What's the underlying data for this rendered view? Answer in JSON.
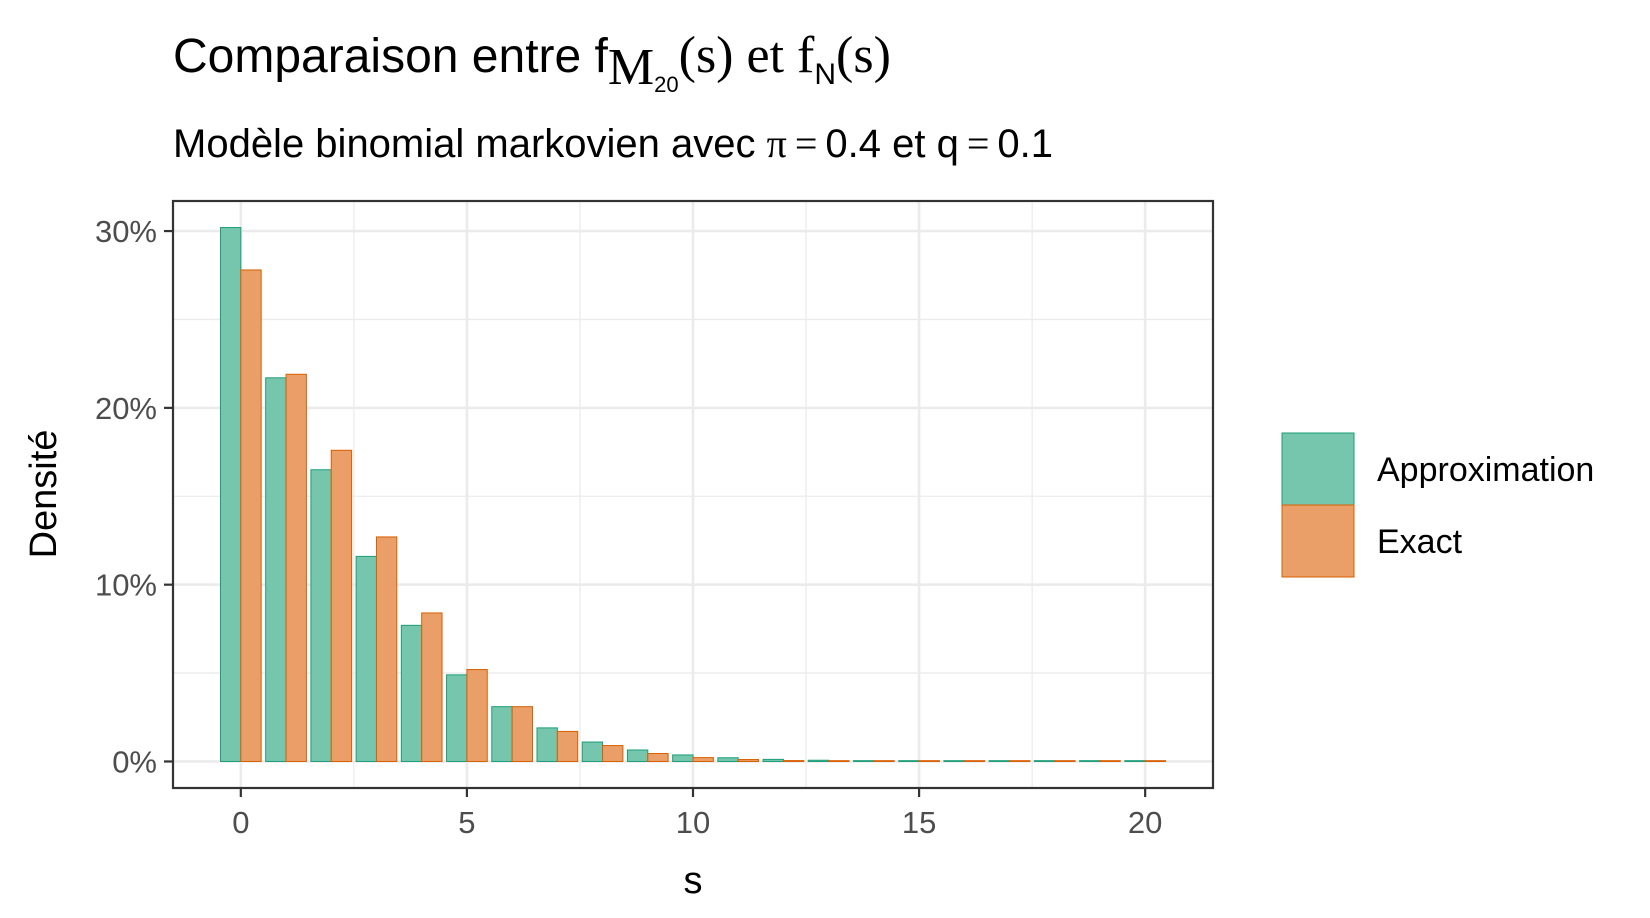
{
  "chart_data": {
    "type": "bar",
    "title": {
      "prefix": "Comparaison entre f",
      "sub1": "M",
      "sub1b": "20",
      "mid": "(s) et f",
      "sub2": "N",
      "suffix": "(s)"
    },
    "subtitle": {
      "text1": "Modèle binomial markovien avec ",
      "pi": "π",
      "eq": "=",
      "text2": "0.4 et q",
      "text3": "0.1"
    },
    "xlabel": "s",
    "ylabel": "Densité",
    "xlim": [
      -1.5,
      21.5
    ],
    "ylim": [
      -0.015,
      0.317
    ],
    "x_ticks": [
      0,
      5,
      10,
      15,
      20
    ],
    "y_ticks": [
      0,
      0.1,
      0.2,
      0.3
    ],
    "y_tick_labels": [
      "0%",
      "10%",
      "20%",
      "30%"
    ],
    "grid": true,
    "legend_position": "right",
    "x": [
      0,
      1,
      2,
      3,
      4,
      5,
      6,
      7,
      8,
      9,
      10,
      11,
      12,
      13,
      14,
      15,
      16,
      17,
      18,
      19,
      20
    ],
    "series": [
      {
        "name": "Approximation",
        "color": "#76c6ae",
        "stroke": "#1b9e77",
        "values": [
          0.302,
          0.217,
          0.165,
          0.116,
          0.077,
          0.049,
          0.031,
          0.019,
          0.011,
          0.0065,
          0.0037,
          0.0021,
          0.0012,
          0.0007,
          0.0004,
          0.0002,
          0.0001,
          6e-05,
          3e-05,
          2e-05,
          1e-05
        ]
      },
      {
        "name": "Exact",
        "color": "#e99f67",
        "stroke": "#d95f02",
        "values": [
          0.278,
          0.219,
          0.176,
          0.127,
          0.084,
          0.052,
          0.031,
          0.017,
          0.009,
          0.0045,
          0.0022,
          0.0011,
          0.0005,
          0.0002,
          0.0001,
          4e-05,
          2e-05,
          1e-05,
          4e-06,
          1e-06,
          5e-07
        ]
      }
    ]
  }
}
